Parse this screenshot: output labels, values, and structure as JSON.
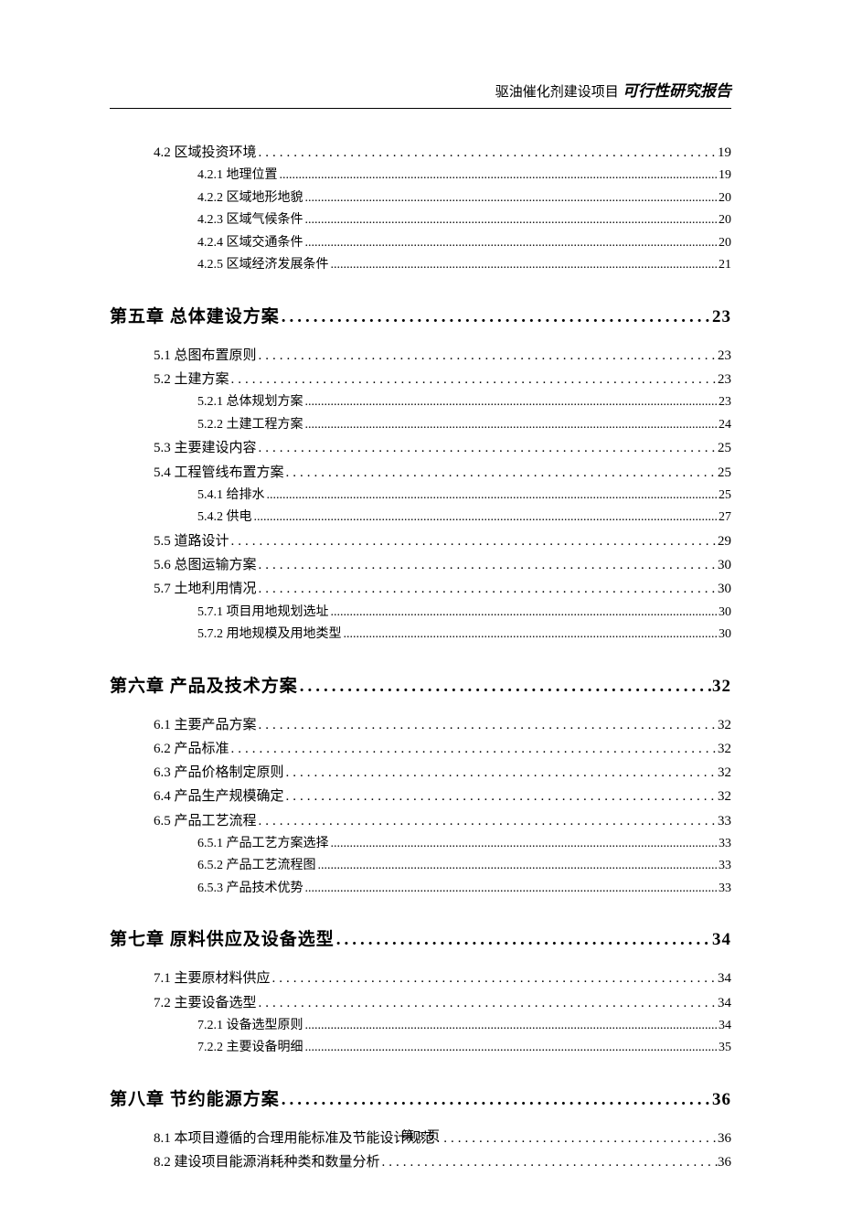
{
  "header": {
    "project": "驱油催化剂建设项目",
    "report": " 可行性研究报告"
  },
  "toc": [
    {
      "level": "section",
      "label": "4.2 区域投资环境",
      "page": "19"
    },
    {
      "level": "subsection",
      "label": "4.2.1 地理位置",
      "page": "19"
    },
    {
      "level": "subsection",
      "label": "4.2.2 区域地形地貌",
      "page": "20"
    },
    {
      "level": "subsection",
      "label": "4.2.3 区域气候条件",
      "page": "20"
    },
    {
      "level": "subsection",
      "label": "4.2.4 区域交通条件",
      "page": "20"
    },
    {
      "level": "subsection",
      "label": "4.2.5 区域经济发展条件",
      "page": "21"
    },
    {
      "level": "chapter",
      "label": "第五章 总体建设方案",
      "page": "23"
    },
    {
      "level": "section",
      "label": "5.1 总图布置原则",
      "page": "23"
    },
    {
      "level": "section",
      "label": "5.2 土建方案",
      "page": "23"
    },
    {
      "level": "subsection",
      "label": "5.2.1 总体规划方案",
      "page": "23"
    },
    {
      "level": "subsection",
      "label": "5.2.2 土建工程方案",
      "page": "24"
    },
    {
      "level": "section",
      "label": "5.3 主要建设内容",
      "page": "25"
    },
    {
      "level": "section",
      "label": "5.4 工程管线布置方案",
      "page": "25"
    },
    {
      "level": "subsection",
      "label": "5.4.1 给排水",
      "page": "25"
    },
    {
      "level": "subsection",
      "label": "5.4.2 供电",
      "page": "27"
    },
    {
      "level": "section",
      "label": "5.5 道路设计",
      "page": "29"
    },
    {
      "level": "section",
      "label": "5.6 总图运输方案",
      "page": "30"
    },
    {
      "level": "section",
      "label": "5.7 土地利用情况",
      "page": "30"
    },
    {
      "level": "subsection",
      "label": "5.7.1 项目用地规划选址",
      "page": "30"
    },
    {
      "level": "subsection",
      "label": "5.7.2 用地规模及用地类型",
      "page": "30"
    },
    {
      "level": "chapter",
      "label": "第六章 产品及技术方案",
      "page": "32"
    },
    {
      "level": "section",
      "label": "6.1 主要产品方案",
      "page": "32"
    },
    {
      "level": "section",
      "label": "6.2 产品标准",
      "page": "32"
    },
    {
      "level": "section",
      "label": "6.3 产品价格制定原则",
      "page": "32"
    },
    {
      "level": "section",
      "label": "6.4 产品生产规模确定",
      "page": "32"
    },
    {
      "level": "section",
      "label": "6.5 产品工艺流程",
      "page": "33"
    },
    {
      "level": "subsection",
      "label": "6.5.1 产品工艺方案选择",
      "page": "33"
    },
    {
      "level": "subsection",
      "label": "6.5.2 产品工艺流程图",
      "page": "33"
    },
    {
      "level": "subsection",
      "label": "6.5.3 产品技术优势",
      "page": "33"
    },
    {
      "level": "chapter",
      "label": "第七章 原料供应及设备选型",
      "page": "34"
    },
    {
      "level": "section",
      "label": "7.1 主要原材料供应",
      "page": "34"
    },
    {
      "level": "section",
      "label": "7.2 主要设备选型",
      "page": "34"
    },
    {
      "level": "subsection",
      "label": "7.2.1 设备选型原则",
      "page": "34"
    },
    {
      "level": "subsection",
      "label": "7.2.2 主要设备明细",
      "page": "35"
    },
    {
      "level": "chapter",
      "label": "第八章 节约能源方案",
      "page": "36"
    },
    {
      "level": "section",
      "label": "8.1 本项目遵循的合理用能标准及节能设计规范",
      "page": "36"
    },
    {
      "level": "section",
      "label": "8.2 建设项目能源消耗种类和数量分析",
      "page": "36"
    }
  ],
  "footer": "第 3 页",
  "style": {
    "dot_char_section": ".",
    "dot_char_sub": ".",
    "background_color": "#ffffff",
    "text_color": "#000000"
  }
}
